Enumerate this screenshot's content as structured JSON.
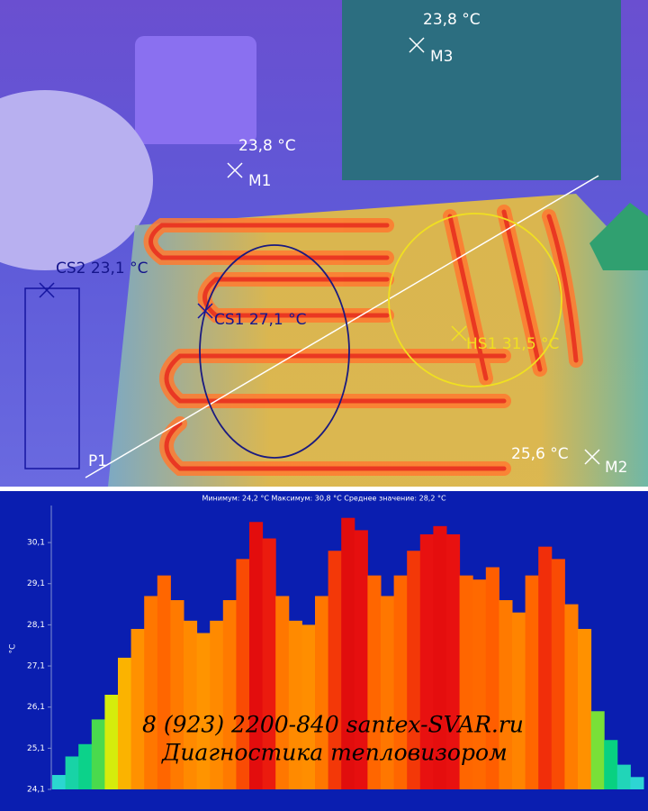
{
  "thermal_image": {
    "markers": [
      {
        "temp": "23,8 °C",
        "name": "M3"
      },
      {
        "temp": "23,8 °C",
        "name": "M1"
      },
      {
        "temp": "25,6 °C",
        "name": "M2"
      }
    ],
    "regions": [
      "CS2 23,1 °C",
      "CS1 27,1 °C",
      "HS1 31,5 °C"
    ],
    "profile_label": "P1"
  },
  "chart_data": {
    "type": "bar",
    "title": "Минимум: 24,2 °C Максимум: 30,8 °C Среднее значение: 28,2 °C",
    "y_label": "°C",
    "values": [
      24.45,
      24.9,
      25.2,
      25.8,
      26.4,
      27.3,
      28.0,
      28.8,
      29.3,
      28.7,
      28.2,
      27.9,
      28.2,
      28.7,
      29.7,
      30.6,
      30.2,
      28.8,
      28.2,
      28.1,
      28.8,
      29.9,
      30.7,
      30.4,
      29.3,
      28.8,
      29.3,
      29.9,
      30.3,
      30.5,
      30.3,
      29.3,
      29.2,
      29.5,
      28.7,
      28.4,
      29.3,
      30.0,
      29.7,
      28.6,
      28.0,
      26.0,
      25.3,
      24.7,
      24.4
    ],
    "ylim": [
      24.1,
      31
    ],
    "yticks": [
      {
        "value": 24.1,
        "label": "24,1"
      },
      {
        "value": 25.1,
        "label": "25,1"
      },
      {
        "value": 26.1,
        "label": "26,1"
      },
      {
        "value": 27.1,
        "label": "27,1"
      },
      {
        "value": 28.1,
        "label": "28,1"
      },
      {
        "value": 29.1,
        "label": "29,1"
      },
      {
        "value": 30.1,
        "label": "30,1"
      }
    ],
    "annotations": [
      "8 (923) 2200-840  santex-SVAR.ru",
      "Диагностика  тепловизором"
    ]
  }
}
